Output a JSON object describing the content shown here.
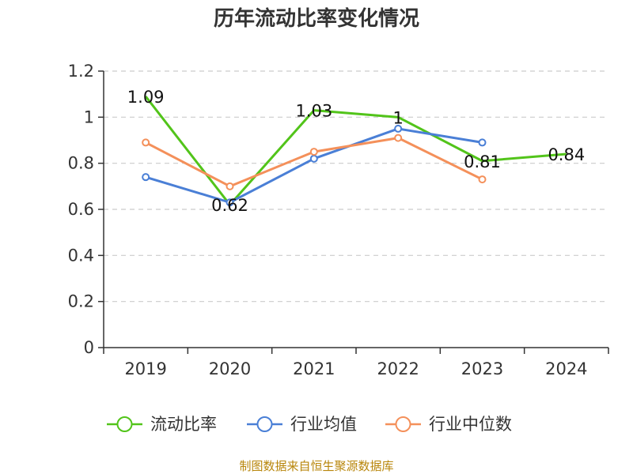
{
  "chart_data": {
    "type": "line",
    "title": "历年流动比率变化情况",
    "categories": [
      "2019",
      "2020",
      "2021",
      "2022",
      "2023",
      "2024"
    ],
    "ylim": [
      0,
      1.2
    ],
    "yticks": [
      "0",
      "0.2",
      "0.4",
      "0.6",
      "0.8",
      "1",
      "1.2"
    ],
    "ytick_values": [
      0,
      0.2,
      0.4,
      0.6,
      0.8,
      1.0,
      1.2
    ],
    "grid": true,
    "legend_position": "bottom",
    "series": [
      {
        "name": "流动比率",
        "color": "#52c41a",
        "markers": false,
        "show_labels": true,
        "values": [
          1.09,
          0.62,
          1.03,
          1.0,
          0.81,
          0.84
        ],
        "labels": [
          "1.09",
          "0.62",
          "1.03",
          "1",
          "0.81",
          "0.84"
        ]
      },
      {
        "name": "行业均值",
        "color": "#4a7fd6",
        "markers": true,
        "show_labels": false,
        "values": [
          0.74,
          0.63,
          0.82,
          0.95,
          0.89,
          null
        ]
      },
      {
        "name": "行业中位数",
        "color": "#f4905a",
        "markers": true,
        "show_labels": false,
        "values": [
          0.89,
          0.7,
          0.85,
          0.91,
          0.73,
          null
        ]
      }
    ]
  },
  "footer": {
    "source": "制图数据来自恒生聚源数据库"
  }
}
